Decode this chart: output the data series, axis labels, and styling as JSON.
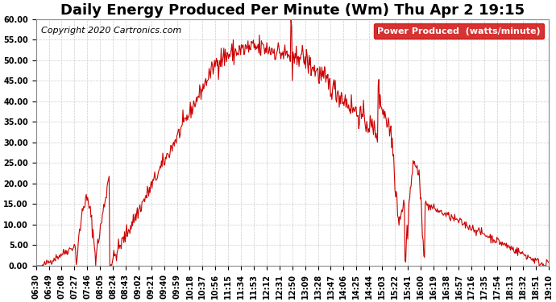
{
  "title": "Daily Energy Produced Per Minute (Wm) Thu Apr 2 19:15",
  "copyright": "Copyright 2020 Cartronics.com",
  "legend_label": "Power Produced  (watts/minute)",
  "legend_bg": "#cc0000",
  "legend_text_color": "#ffffff",
  "line_color": "#cc0000",
  "bg_color": "#ffffff",
  "grid_color": "#cccccc",
  "ylim": [
    0.0,
    60.0
  ],
  "yticks": [
    0.0,
    5.0,
    10.0,
    15.0,
    20.0,
    25.0,
    30.0,
    35.0,
    40.0,
    45.0,
    50.0,
    55.0,
    60.0
  ],
  "xtick_labels": [
    "06:30",
    "06:49",
    "07:08",
    "07:27",
    "07:46",
    "08:05",
    "08:24",
    "08:43",
    "09:02",
    "09:21",
    "09:40",
    "09:59",
    "10:18",
    "10:37",
    "10:56",
    "11:15",
    "11:34",
    "11:53",
    "12:12",
    "12:31",
    "12:50",
    "13:09",
    "13:28",
    "13:47",
    "14:06",
    "14:25",
    "14:44",
    "15:03",
    "15:22",
    "15:41",
    "16:00",
    "16:19",
    "16:38",
    "16:57",
    "17:16",
    "17:35",
    "17:54",
    "18:13",
    "18:32",
    "18:51",
    "19:10"
  ],
  "title_fontsize": 13,
  "copyright_fontsize": 8,
  "tick_fontsize": 7,
  "legend_fontsize": 8
}
